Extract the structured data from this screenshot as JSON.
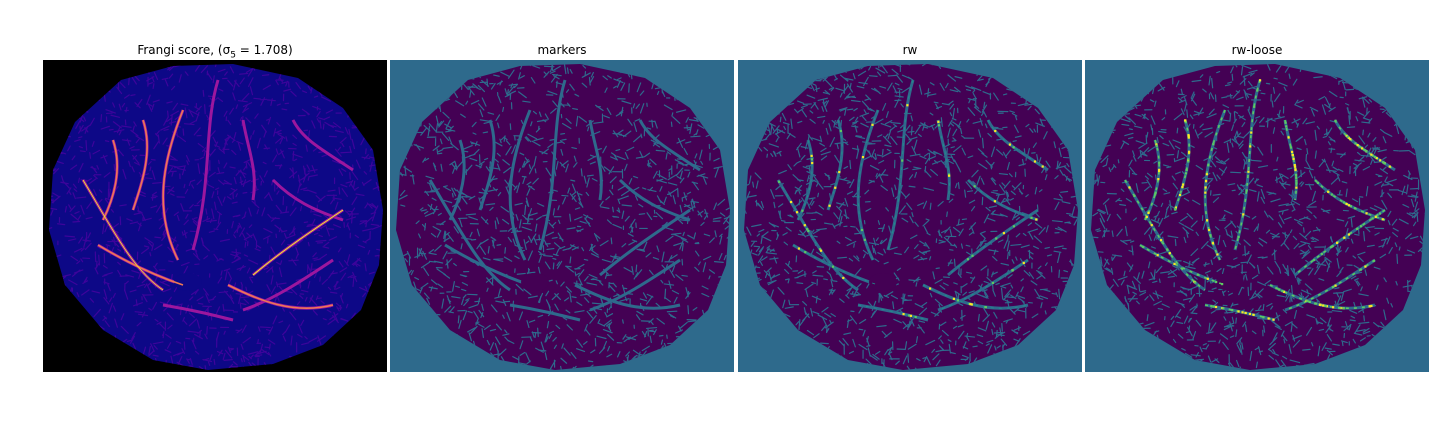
{
  "panels": [
    {
      "id": "frangi",
      "title": "Frangi score, (σ",
      "title_sub": "5",
      "title_tail": " = 1.708)",
      "cmap": "plasma"
    },
    {
      "id": "markers",
      "title": "markers",
      "cmap": "viridis"
    },
    {
      "id": "rw",
      "title": "rw",
      "cmap": "viridis"
    },
    {
      "id": "rw-loose",
      "title": "rw-loose",
      "cmap": "viridis"
    }
  ],
  "colors": {
    "frangi_background": "#000000",
    "frangi_tissue": "#0d0887",
    "frangi_texture": "#3d049b",
    "frangi_vessel_mid": "#9c179e",
    "frangi_vessel_high": "#ed7953",
    "frangi_vessel_peak": "#f0f921",
    "viridis_background": "#2e6a8c",
    "viridis_low": "#440154",
    "viridis_mid": "#21918c",
    "viridis_high": "#5ec962",
    "viridis_peak": "#fde725"
  }
}
